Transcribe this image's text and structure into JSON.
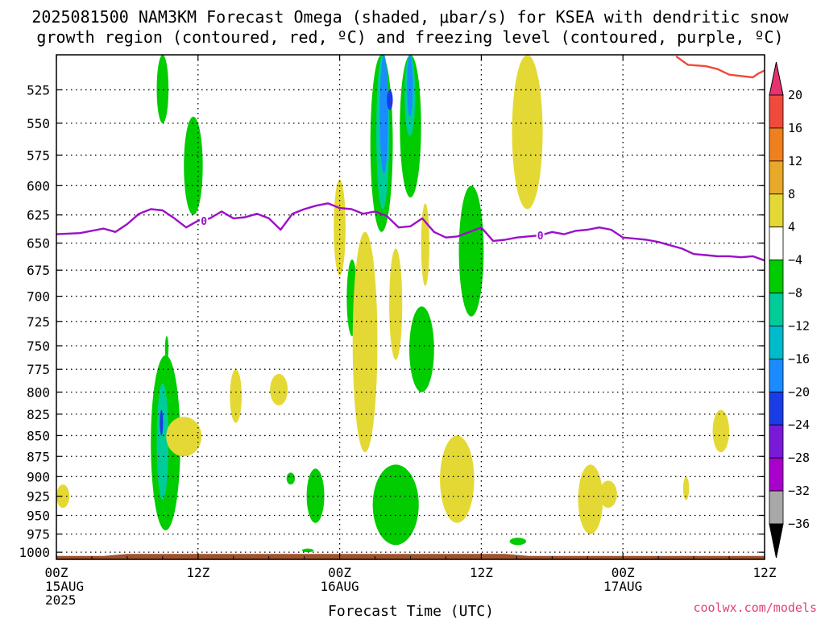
{
  "chart_data": {
    "type": "heatmap",
    "title_lines": [
      "2025081500 NAM3KM Forecast Omega (shaded, μbar/s) for KSEA with dendritic snow",
      "growth region (contoured, red, ºC) and freezing level (contoured, purple, ºC)"
    ],
    "xlabel": "Forecast Time (UTC)",
    "x_ticks": [
      {
        "hour": 0,
        "lines": [
          "00Z",
          "15AUG",
          "2025"
        ]
      },
      {
        "hour": 12,
        "lines": [
          "12Z"
        ]
      },
      {
        "hour": 24,
        "lines": [
          "00Z",
          "16AUG"
        ]
      },
      {
        "hour": 36,
        "lines": [
          "12Z"
        ]
      },
      {
        "hour": 48,
        "lines": [
          "00Z",
          "17AUG"
        ]
      },
      {
        "hour": 60,
        "lines": [
          "12Z"
        ]
      }
    ],
    "xlim": [
      0,
      60
    ],
    "ylabel": "",
    "y_ticks": [
      525,
      550,
      575,
      600,
      625,
      650,
      675,
      700,
      725,
      750,
      775,
      800,
      825,
      850,
      875,
      900,
      925,
      950,
      975,
      1000
    ],
    "ylim": [
      1010,
      500
    ],
    "y_scale": "log-pressure (inverted)",
    "grid": "dotted",
    "colorbar": {
      "levels": [
        20,
        16,
        12,
        8,
        4,
        -4,
        -8,
        -12,
        -16,
        -20,
        -24,
        -28,
        -32,
        -36
      ],
      "colors": [
        "#e8326e",
        "#f04a3c",
        "#ef7f1f",
        "#e8a82a",
        "#e4d934",
        "#ffffff",
        "#00cc00",
        "#00cc99",
        "#00bbcc",
        "#1a8cff",
        "#1a3ce6",
        "#7a1ad9",
        "#aa00cc",
        "#a8a8a8",
        "#000000"
      ]
    },
    "series": [
      {
        "name": "0",
        "type": "freezing-level contour",
        "color": "#9b10c8",
        "points": [
          [
            0,
            642
          ],
          [
            2,
            641
          ],
          [
            4,
            637
          ],
          [
            5,
            640
          ],
          [
            6,
            633
          ],
          [
            7,
            624
          ],
          [
            8,
            620
          ],
          [
            9,
            621
          ],
          [
            10,
            628
          ],
          [
            11,
            636
          ],
          [
            12,
            630
          ],
          [
            13,
            628
          ],
          [
            14,
            622
          ],
          [
            15,
            628
          ],
          [
            16,
            627
          ],
          [
            17,
            624
          ],
          [
            18,
            628
          ],
          [
            19,
            638
          ],
          [
            20,
            624
          ],
          [
            21,
            620
          ],
          [
            22,
            617
          ],
          [
            23,
            615
          ],
          [
            24,
            619
          ],
          [
            25,
            620
          ],
          [
            26,
            624
          ],
          [
            27,
            622
          ],
          [
            28,
            626
          ],
          [
            29,
            636
          ],
          [
            30,
            635
          ],
          [
            31,
            628
          ],
          [
            32,
            640
          ],
          [
            33,
            645
          ],
          [
            34,
            644
          ],
          [
            35,
            640
          ],
          [
            36,
            636
          ],
          [
            37,
            648
          ],
          [
            38,
            647
          ],
          [
            39,
            645
          ],
          [
            40,
            644
          ],
          [
            41,
            643
          ],
          [
            42,
            640
          ],
          [
            43,
            642
          ],
          [
            44,
            639
          ],
          [
            45,
            638
          ],
          [
            46,
            636
          ],
          [
            47,
            638
          ],
          [
            48,
            645
          ],
          [
            49,
            646
          ],
          [
            50,
            647
          ],
          [
            51,
            649
          ],
          [
            52,
            652
          ],
          [
            53,
            655
          ],
          [
            54,
            660
          ],
          [
            55,
            661
          ],
          [
            56,
            662
          ],
          [
            57,
            662
          ],
          [
            58,
            663
          ],
          [
            59,
            662
          ],
          [
            60,
            666
          ]
        ]
      },
      {
        "name": "",
        "type": "dendritic snow growth contour",
        "color": "#f04a3c",
        "points": [
          [
            52.5,
            501
          ],
          [
            53.5,
            507
          ],
          [
            55,
            508
          ],
          [
            56,
            510
          ],
          [
            57,
            514
          ],
          [
            58,
            515
          ],
          [
            59,
            516
          ],
          [
            59.5,
            513
          ],
          [
            60,
            511
          ]
        ]
      }
    ],
    "shaded_regions": [
      {
        "color": "#00cc00",
        "x": [
          8,
          10.5
        ],
        "p": [
          760,
          970
        ]
      },
      {
        "color": "#00cc99",
        "x": [
          8.5,
          9.5
        ],
        "p": [
          790,
          930
        ]
      },
      {
        "color": "#1a3ce6",
        "x": [
          8.8,
          9.0
        ],
        "p": [
          820,
          850
        ]
      },
      {
        "color": "#00cc00",
        "x": [
          8.5,
          9.5
        ],
        "p": [
          500,
          550
        ]
      },
      {
        "color": "#00cc00",
        "x": [
          10.8,
          12.4
        ],
        "p": [
          545,
          625
        ]
      },
      {
        "color": "#00cc00",
        "x": [
          9.2,
          9.5
        ],
        "p": [
          740,
          765
        ]
      },
      {
        "color": "#e4d934",
        "x": [
          0,
          1.1
        ],
        "p": [
          910,
          940
        ]
      },
      {
        "color": "#e4d934",
        "x": [
          9.3,
          12.3
        ],
        "p": [
          828,
          875
        ]
      },
      {
        "color": "#e4d934",
        "x": [
          14.7,
          15.7
        ],
        "p": [
          775,
          835
        ]
      },
      {
        "color": "#e4d934",
        "x": [
          18.1,
          19.6
        ],
        "p": [
          780,
          815
        ]
      },
      {
        "color": "#00cc00",
        "x": [
          19.5,
          20.2
        ],
        "p": [
          895,
          910
        ]
      },
      {
        "color": "#00cc00",
        "x": [
          21.2,
          22.7
        ],
        "p": [
          890,
          960
        ]
      },
      {
        "color": "#00cc00",
        "x": [
          20.8,
          21.8
        ],
        "p": [
          995,
          1000
        ]
      },
      {
        "color": "#e4d934",
        "x": [
          23.5,
          24.5
        ],
        "p": [
          595,
          680
        ]
      },
      {
        "color": "#00cc00",
        "x": [
          24.6,
          25.5
        ],
        "p": [
          665,
          740
        ]
      },
      {
        "color": "#e4d934",
        "x": [
          25.1,
          27.2
        ],
        "p": [
          640,
          870
        ]
      },
      {
        "color": "#00cc00",
        "x": [
          26.6,
          28.5
        ],
        "p": [
          500,
          640
        ]
      },
      {
        "color": "#00cc99",
        "x": [
          27.1,
          28.2
        ],
        "p": [
          500,
          620
        ]
      },
      {
        "color": "#1a8cff",
        "x": [
          27.4,
          28.1
        ],
        "p": [
          500,
          590
        ]
      },
      {
        "color": "#1a3ce6",
        "x": [
          28.0,
          28.5
        ],
        "p": [
          525,
          540
        ]
      },
      {
        "color": "#00cc00",
        "x": [
          29.1,
          30.9
        ],
        "p": [
          500,
          610
        ]
      },
      {
        "color": "#00cc99",
        "x": [
          29.5,
          30.4
        ],
        "p": [
          500,
          560
        ]
      },
      {
        "color": "#1a8cff",
        "x": [
          29.7,
          30.2
        ],
        "p": [
          500,
          545
        ]
      },
      {
        "color": "#e4d934",
        "x": [
          28.2,
          29.3
        ],
        "p": [
          655,
          765
        ]
      },
      {
        "color": "#00cc00",
        "x": [
          29.9,
          32.0
        ],
        "p": [
          710,
          800
        ]
      },
      {
        "color": "#00cc00",
        "x": [
          26.8,
          30.7
        ],
        "p": [
          885,
          990
        ]
      },
      {
        "color": "#e4d934",
        "x": [
          30.9,
          31.6
        ],
        "p": [
          615,
          690
        ]
      },
      {
        "color": "#e4d934",
        "x": [
          32.5,
          35.4
        ],
        "p": [
          850,
          960
        ]
      },
      {
        "color": "#00cc00",
        "x": [
          34.1,
          36.2
        ],
        "p": [
          600,
          720
        ]
      },
      {
        "color": "#00cc00",
        "x": [
          38.4,
          39.8
        ],
        "p": [
          980,
          990
        ]
      },
      {
        "color": "#e4d934",
        "x": [
          38.6,
          41.2
        ],
        "p": [
          500,
          620
        ]
      },
      {
        "color": "#e4d934",
        "x": [
          44.2,
          46.3
        ],
        "p": [
          885,
          975
        ]
      },
      {
        "color": "#e4d934",
        "x": [
          46.0,
          47.5
        ],
        "p": [
          905,
          940
        ]
      },
      {
        "color": "#e4d934",
        "x": [
          53.1,
          53.6
        ],
        "p": [
          900,
          930
        ]
      },
      {
        "color": "#e4d934",
        "x": [
          55.6,
          57.0
        ],
        "p": [
          820,
          870
        ]
      }
    ],
    "terrain": {
      "color": "#a0522d",
      "pressure": 1004
    },
    "credit": "coolwx.com/models"
  }
}
